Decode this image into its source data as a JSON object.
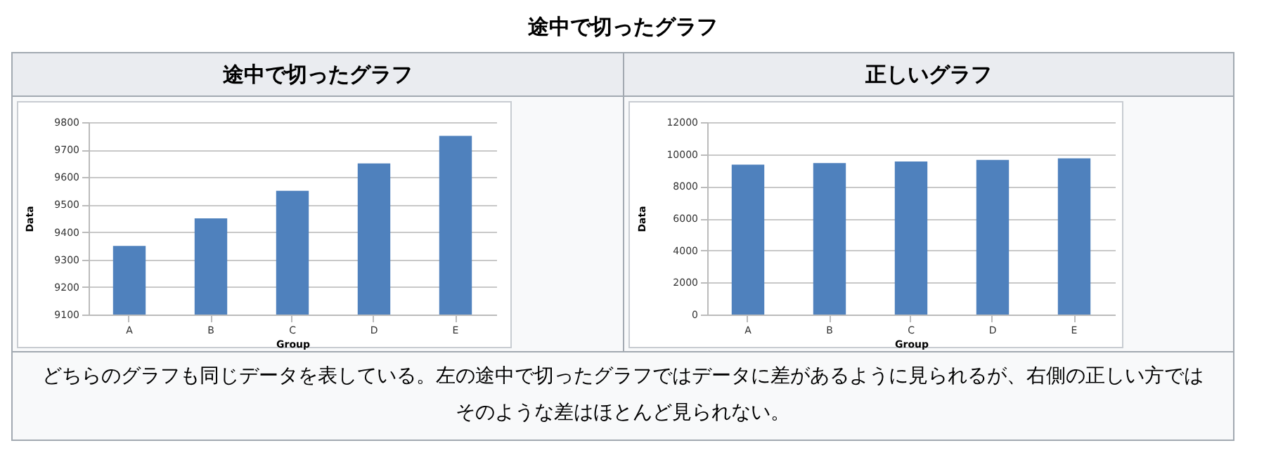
{
  "chart_data": [
    {
      "type": "other",
      "title": "途中で切ったグラフ"
    },
    {
      "type": "bar",
      "title": "途中で切ったグラフ",
      "xlabel": "Group",
      "ylabel": "Data",
      "categories": [
        "A",
        "B",
        "C",
        "D",
        "E"
      ],
      "values": [
        9350,
        9450,
        9550,
        9650,
        9750
      ],
      "color": "#4f81bd",
      "ylim": [
        9100,
        9800
      ],
      "yticks": [
        9100,
        9200,
        9300,
        9400,
        9500,
        9600,
        9700,
        9800
      ],
      "grid": "y"
    },
    {
      "type": "bar",
      "title": "正しいグラフ",
      "xlabel": "Group",
      "ylabel": "Data",
      "categories": [
        "A",
        "B",
        "C",
        "D",
        "E"
      ],
      "values": [
        9350,
        9450,
        9550,
        9650,
        9750
      ],
      "color": "#4f81bd",
      "ylim": [
        0,
        12000
      ],
      "yticks": [
        0,
        2000,
        4000,
        6000,
        8000,
        10000,
        12000
      ],
      "grid": "y"
    },
    {
      "type": "other",
      "annotations": [
        "どちらのグラフも同じデータを表している。左の途中で切ったグラフではデータに差があるように見られるが、右側の正しい方ではそのような差はほとんど見られない。"
      ]
    }
  ]
}
